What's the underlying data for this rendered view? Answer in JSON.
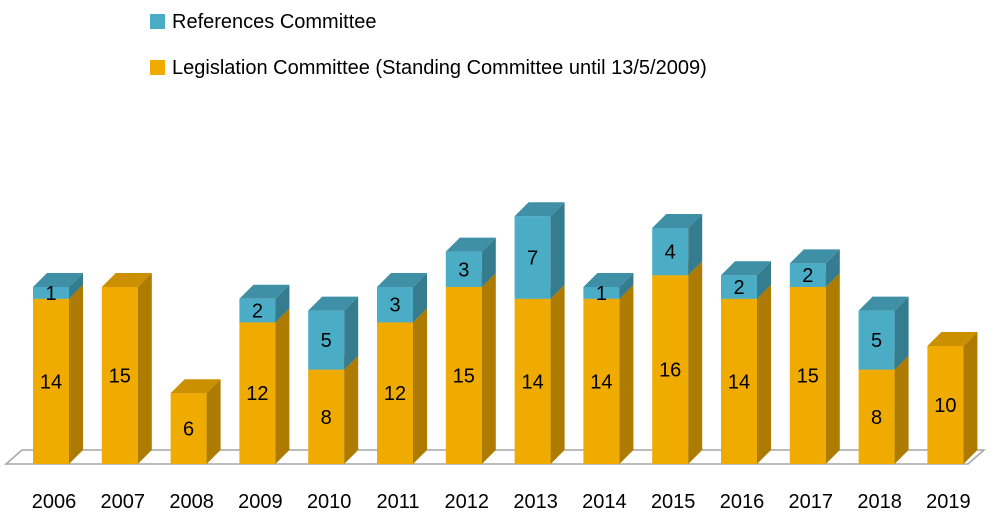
{
  "chart_data": {
    "type": "bar",
    "stacked": true,
    "three_d": true,
    "categories": [
      "2006",
      "2007",
      "2008",
      "2009",
      "2010",
      "2011",
      "2012",
      "2013",
      "2014",
      "2015",
      "2016",
      "2017",
      "2018",
      "2019"
    ],
    "series": [
      {
        "name": "Legislation Committee (Standing Committee until 13/5/2009)",
        "color": "#F0AB00",
        "values": [
          14,
          15,
          6,
          12,
          8,
          12,
          15,
          14,
          14,
          16,
          14,
          15,
          8,
          10
        ]
      },
      {
        "name": "References Committee",
        "color": "#4BACC6",
        "values": [
          1,
          0,
          0,
          2,
          5,
          3,
          3,
          7,
          1,
          4,
          2,
          2,
          5,
          0
        ]
      }
    ],
    "legend_position": "top-left",
    "legend_order": [
      1,
      0
    ],
    "ylim": [
      0,
      22
    ],
    "grid": false,
    "y_axis_visible": false
  }
}
